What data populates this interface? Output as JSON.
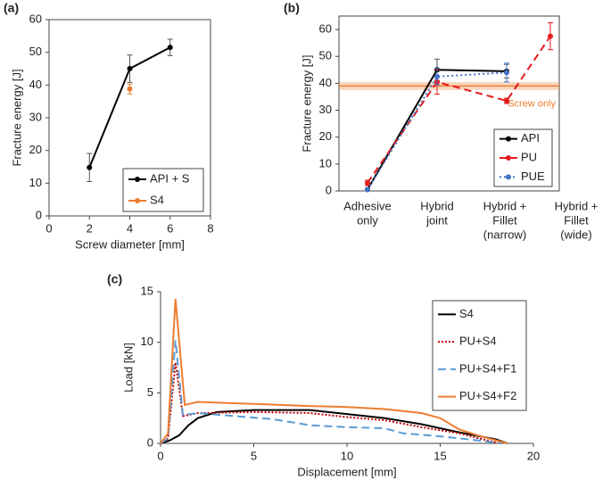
{
  "chart_data": [
    {
      "type": "line",
      "label": "(a)",
      "xlabel": "Screw diameter [mm]",
      "ylabel": "Fracture energy [J]",
      "xlim": [
        0,
        8
      ],
      "xticks": [
        0,
        2,
        4,
        6,
        8
      ],
      "ylim": [
        0,
        60
      ],
      "yticks": [
        0,
        10,
        20,
        30,
        40,
        50,
        60
      ],
      "legend": "lower right",
      "series": [
        {
          "name": "API + S",
          "color": "#000000",
          "x": [
            2,
            4,
            6
          ],
          "values": [
            14.8,
            45,
            51.5
          ],
          "errors": [
            4.3,
            4.2,
            2.5
          ],
          "marker": true,
          "line": true
        },
        {
          "name": "S4",
          "color": "#ed7d31",
          "x": [
            4
          ],
          "values": [
            38.8
          ],
          "errors": [
            1.5
          ],
          "marker": true,
          "line": false
        }
      ]
    },
    {
      "type": "line",
      "label": "(b)",
      "ylabel": "Fracture energy [J]",
      "categories": [
        [
          "Adhesive",
          "only"
        ],
        [
          "Hybrid",
          "joint"
        ],
        [
          "Hybrid +",
          "Fillet",
          "(narrow)"
        ],
        [
          "Hybrid +",
          "Fillet",
          "(wide)"
        ]
      ],
      "ylim": [
        0,
        65
      ],
      "yticks": [
        0,
        10,
        20,
        30,
        40,
        50,
        60
      ],
      "legend": "lower right",
      "reference": {
        "value": 39,
        "error": 1.5,
        "label": "Screw only",
        "color": "#ed7d31"
      },
      "series": [
        {
          "name": "API",
          "color": "#000000",
          "dash": "none",
          "values": [
            0.5,
            45,
            44.5,
            null
          ],
          "errors": [
            0.3,
            4,
            2.5,
            null
          ],
          "marker": true,
          "line": true
        },
        {
          "name": "PU",
          "color": "#e41a1c",
          "dash": "8 5",
          "values": [
            3,
            40.5,
            33.5,
            57.5
          ],
          "errors": [
            1,
            4.5,
            1,
            5
          ],
          "marker": true,
          "line": true
        },
        {
          "name": "PUE",
          "color": "#4472c4",
          "dash": "2 3",
          "values": [
            0.5,
            42.5,
            44,
            null
          ],
          "errors": [
            0.5,
            3,
            3.5,
            null
          ],
          "marker": true,
          "line": true
        }
      ]
    },
    {
      "type": "line",
      "label": "(c)",
      "xlabel": "Displacement [mm]",
      "ylabel": "Load [kN]",
      "xlim": [
        0,
        20
      ],
      "xticks": [
        0,
        5,
        10,
        15,
        20
      ],
      "ylim": [
        0,
        15
      ],
      "yticks": [
        0,
        5,
        10,
        15
      ],
      "legend": "upper right",
      "series": [
        {
          "name": "S4",
          "color": "#000000",
          "dash": "none",
          "line": true,
          "x": [
            0,
            0.5,
            1,
            1.5,
            2,
            3,
            5,
            8,
            10,
            12,
            14,
            16,
            18,
            18.6
          ],
          "values": [
            0,
            0.3,
            0.8,
            1.8,
            2.5,
            3.1,
            3.3,
            3.3,
            2.9,
            2.5,
            1.9,
            1.1,
            0.4,
            0
          ]
        },
        {
          "name": "PU+S4",
          "color": "#c00000",
          "dash": "2 2",
          "line": true,
          "x": [
            0,
            0.4,
            0.8,
            1.2,
            2,
            5,
            8,
            10,
            12,
            14,
            16,
            17.5,
            18.2
          ],
          "values": [
            0,
            0.5,
            8,
            2.7,
            3,
            3.1,
            3,
            2.6,
            2.3,
            1.6,
            1,
            0.3,
            0
          ]
        },
        {
          "name": "PU+S4+F1",
          "color": "#5b9bd5",
          "dash": "9 5",
          "line": true,
          "x": [
            0,
            0.4,
            0.8,
            1.2,
            2,
            4,
            6,
            8,
            10,
            12,
            13,
            15,
            17,
            18.3
          ],
          "values": [
            0,
            0.5,
            10.2,
            2.8,
            3,
            2.7,
            2.4,
            1.8,
            1.6,
            1.5,
            1,
            0.7,
            0.3,
            0
          ]
        },
        {
          "name": "PU+S4+F2",
          "color": "#ed7d31",
          "dash": "none",
          "line": true,
          "x": [
            0,
            0.4,
            0.8,
            1.3,
            2,
            5,
            8,
            10,
            12,
            14,
            15,
            16,
            17,
            18.6
          ],
          "values": [
            0,
            1,
            14.3,
            3.8,
            4.1,
            3.9,
            3.7,
            3.6,
            3.4,
            3,
            2.5,
            1.4,
            0.8,
            0
          ]
        }
      ]
    }
  ]
}
